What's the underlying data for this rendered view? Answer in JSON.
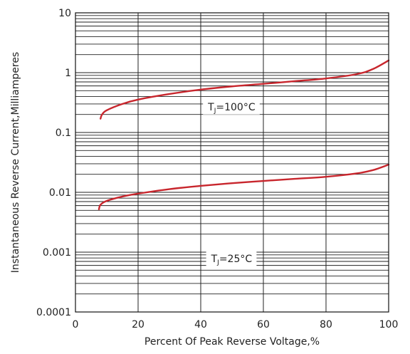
{
  "chart_data": {
    "type": "line",
    "title": "",
    "xlabel": "Percent Of Peak Reverse Voltage,%",
    "ylabel": "Instantaneous Reverse Current,Milliamperes",
    "x_scale": "linear",
    "y_scale": "log",
    "xlim": [
      0,
      100
    ],
    "ylim": [
      0.0001,
      10
    ],
    "x_ticks": [
      {
        "value": 0,
        "label": "0"
      },
      {
        "value": 20,
        "label": "20"
      },
      {
        "value": 40,
        "label": "40"
      },
      {
        "value": 60,
        "label": "60"
      },
      {
        "value": 80,
        "label": "80"
      },
      {
        "value": 100,
        "label": "100"
      }
    ],
    "y_ticks": [
      {
        "value": 10,
        "label": "10"
      },
      {
        "value": 1,
        "label": "1"
      },
      {
        "value": 0.1,
        "label": "0.1"
      },
      {
        "value": 0.01,
        "label": "0.01"
      },
      {
        "value": 0.001,
        "label": "0.001"
      },
      {
        "value": 0.0001,
        "label": "0.0001"
      }
    ],
    "grid": true,
    "line_color": "#c8262d",
    "series": [
      {
        "annotation": {
          "main": "T",
          "sub": "J",
          "value": "=100°C"
        },
        "x": [
          8,
          8.5,
          10,
          15,
          20,
          30,
          40,
          50,
          60,
          70,
          80,
          90,
          95,
          100
        ],
        "y": [
          0.17,
          0.2,
          0.235,
          0.3,
          0.355,
          0.44,
          0.52,
          0.59,
          0.65,
          0.72,
          0.8,
          0.95,
          1.15,
          1.6
        ]
      },
      {
        "annotation": {
          "main": "T",
          "sub": "J",
          "value": "=25°C"
        },
        "x": [
          7.5,
          8,
          10,
          15,
          20,
          30,
          40,
          50,
          60,
          70,
          80,
          90,
          95,
          100
        ],
        "y": [
          0.0052,
          0.0062,
          0.0072,
          0.0085,
          0.0095,
          0.0113,
          0.0128,
          0.0142,
          0.0155,
          0.0168,
          0.0182,
          0.0208,
          0.0235,
          0.029
        ]
      }
    ]
  }
}
